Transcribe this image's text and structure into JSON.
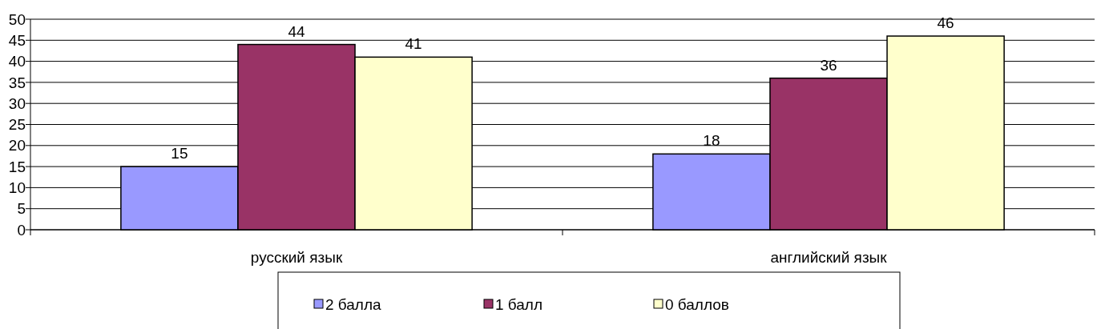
{
  "chart_data": {
    "type": "bar",
    "categories": [
      "русский язык",
      "английский язык"
    ],
    "series": [
      {
        "name": "2 балла",
        "color": "#9999ff",
        "values": [
          15,
          18
        ]
      },
      {
        "name": "1 балл",
        "color": "#993366",
        "values": [
          44,
          36
        ]
      },
      {
        "name": "0 баллов",
        "color": "#ffffcc",
        "values": [
          41,
          46
        ]
      }
    ],
    "ylim": [
      0,
      50
    ],
    "yticks": [
      0,
      5,
      10,
      15,
      20,
      25,
      30,
      35,
      40,
      45,
      50
    ],
    "grid": "y",
    "data_labels": true,
    "legend": "bottom"
  }
}
